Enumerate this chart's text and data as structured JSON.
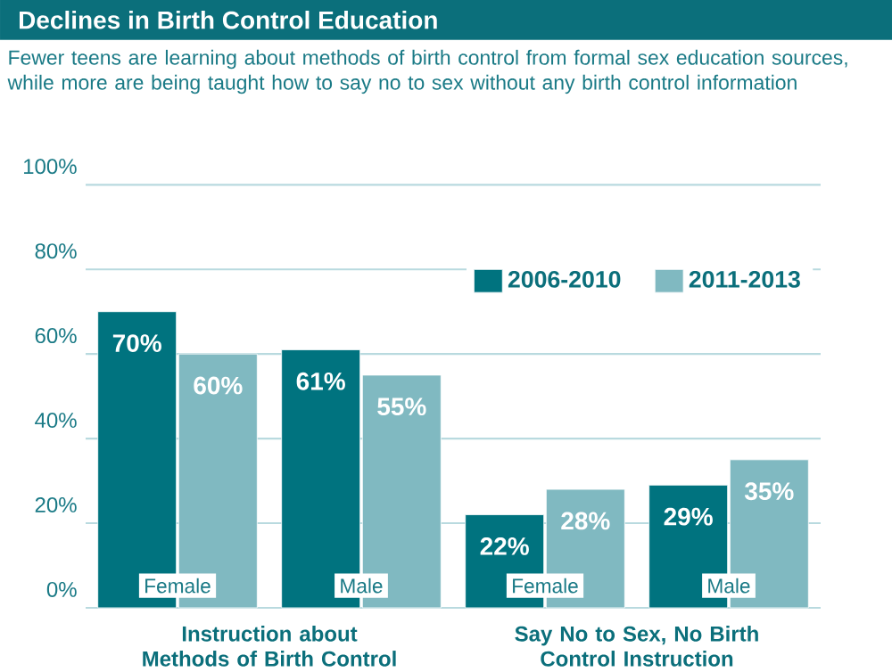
{
  "chart_data": {
    "type": "bar",
    "title": "Declines in Birth Control Education",
    "subtitle": "Fewer teens are learning about methods of birth control from formal sex education sources, while more are being taught how to say no to sex without any birth control information",
    "categories": [
      "Female",
      "Male",
      "Female",
      "Male"
    ],
    "series": [
      {
        "name": "2006-2010",
        "color": "#00737f",
        "values": [
          70,
          61,
          22,
          29
        ],
        "value_labels": [
          "70%",
          "61%",
          "22%",
          "29%"
        ]
      },
      {
        "name": "2011-2013",
        "color": "#80b9c1",
        "values": [
          60,
          55,
          28,
          35
        ],
        "value_labels": [
          "60%",
          "55%",
          "28%",
          "35%"
        ]
      }
    ],
    "ylim": [
      0,
      100
    ],
    "yticks": [
      {
        "value": 0,
        "label": "0%"
      },
      {
        "value": 20,
        "label": "20%"
      },
      {
        "value": 40,
        "label": "40%"
      },
      {
        "value": 60,
        "label": "60%"
      },
      {
        "value": 80,
        "label": "80%"
      },
      {
        "value": 100,
        "label": "100%"
      }
    ],
    "grid": "y",
    "legend": "top right",
    "annotations": [
      "Instruction about Methods of Birth Control",
      "Say No to Sex, No Birth Control Instruction"
    ]
  }
}
